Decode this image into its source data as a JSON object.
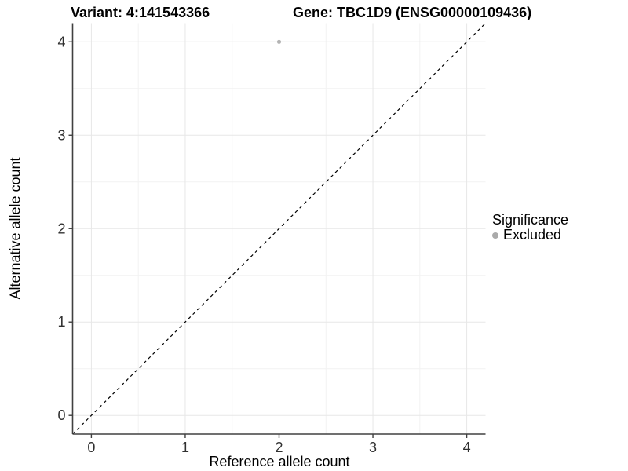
{
  "titles": {
    "left": "Variant: 4:141543366",
    "right": "Gene: TBC1D9 (ENSG00000109436)"
  },
  "axes": {
    "xlabel": "Reference allele count",
    "ylabel": "Alternative allele count"
  },
  "legend": {
    "title": "Significance",
    "items": [
      {
        "label": "Excluded",
        "color": "#aaaaaa"
      }
    ]
  },
  "colors": {
    "background": "#ffffff",
    "major_grid": "#e7e7e7",
    "minor_grid": "#f2f2f2",
    "axis_line": "#404040",
    "tick_label": "#303030",
    "point": "#b3b3b3",
    "reference_line": "#000000"
  },
  "chart_data": {
    "type": "scatter",
    "title_left": "Variant: 4:141543366",
    "title_right": "Gene: TBC1D9 (ENSG00000109436)",
    "xlabel": "Reference allele count",
    "ylabel": "Alternative allele count",
    "xlim": [
      -0.2,
      4.2
    ],
    "ylim": [
      -0.2,
      4.2
    ],
    "xticks": [
      0,
      1,
      2,
      3,
      4
    ],
    "yticks": [
      0,
      1,
      2,
      3,
      4
    ],
    "minor_gridlines": [
      0.5,
      1.5,
      2.5,
      3.5
    ],
    "grid": true,
    "legend_position": "right",
    "legend_title": "Significance",
    "series": [
      {
        "name": "Excluded",
        "color": "#b3b3b3",
        "points": [
          {
            "x": 2,
            "y": 4
          }
        ]
      }
    ],
    "reference_line": {
      "kind": "identity_y_equals_x",
      "style": "dashed",
      "color": "#000000",
      "from": [
        -0.2,
        -0.2
      ],
      "to": [
        4.2,
        4.2
      ]
    }
  }
}
